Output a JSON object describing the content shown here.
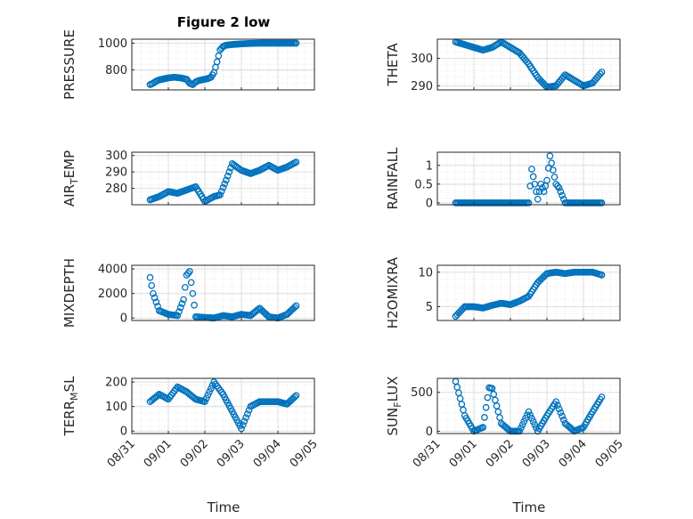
{
  "chart_data": [
    {
      "type": "scatter",
      "title": "Figure 2 low",
      "ylabel": "PRESSURE",
      "ylabel_sub": "",
      "ylim": [
        650,
        1030
      ],
      "yticks": [
        800,
        1000
      ],
      "x": [
        "08/31 12:00",
        "08/31 14:00",
        "08/31 16:00",
        "08/31 18:00",
        "08/31 20:00",
        "08/31 22:00",
        "09/01 00:00",
        "09/01 04:00",
        "09/01 08:00",
        "09/01 12:00",
        "09/01 14:00",
        "09/01 16:00",
        "09/01 18:00",
        "09/01 20:00",
        "09/01 22:00",
        "09/02 02:00",
        "09/02 04:00",
        "09/02 06:00",
        "09/02 08:00",
        "09/02 10:00",
        "09/02 12:00",
        "09/02 14:00",
        "09/02 18:00",
        "09/03 00:00",
        "09/03 06:00",
        "09/03 12:00",
        "09/03 18:00",
        "09/04 00:00",
        "09/04 06:00",
        "09/04 12:00"
      ],
      "y": [
        690,
        700,
        715,
        725,
        730,
        735,
        740,
        745,
        740,
        730,
        700,
        690,
        710,
        720,
        725,
        735,
        745,
        780,
        860,
        950,
        975,
        985,
        990,
        995,
        998,
        1000,
        1000,
        1000,
        1000,
        1000
      ]
    },
    {
      "type": "scatter",
      "ylabel": "THETA",
      "ylabel_sub": "",
      "ylim": [
        288.5,
        307
      ],
      "yticks": [
        290,
        300
      ],
      "x": [
        "08/31 12:00",
        "08/31 18:00",
        "09/01 00:00",
        "09/01 06:00",
        "09/01 12:00",
        "09/01 18:00",
        "09/02 00:00",
        "09/02 06:00",
        "09/02 12:00",
        "09/02 18:00",
        "09/03 00:00",
        "09/03 06:00",
        "09/03 12:00",
        "09/03 18:00",
        "09/04 00:00",
        "09/04 06:00",
        "09/04 12:00"
      ],
      "y": [
        306,
        305,
        304,
        303,
        304,
        306,
        304,
        302,
        298,
        293,
        289.5,
        290,
        294,
        292,
        290,
        291,
        295
      ]
    },
    {
      "type": "scatter",
      "ylabel": "AIR",
      "ylabel_sub": "T",
      "ylabel_rest": "EMP",
      "ylim": [
        270,
        302
      ],
      "yticks": [
        280,
        290,
        300
      ],
      "x": [
        "08/31 12:00",
        "08/31 18:00",
        "09/01 00:00",
        "09/01 06:00",
        "09/01 12:00",
        "09/01 18:00",
        "09/02 00:00",
        "09/02 06:00",
        "09/02 10:00",
        "09/02 14:00",
        "09/02 18:00",
        "09/03 00:00",
        "09/03 06:00",
        "09/03 12:00",
        "09/03 18:00",
        "09/04 00:00",
        "09/04 06:00",
        "09/04 12:00"
      ],
      "y": [
        273,
        275,
        278,
        277,
        279,
        281,
        272,
        275,
        276,
        285,
        295,
        291,
        289,
        291,
        294,
        291,
        293,
        296
      ]
    },
    {
      "type": "scatter",
      "ylabel": "RAINFALL",
      "ylabel_sub": "",
      "ylim": [
        -0.05,
        1.35
      ],
      "yticks": [
        0,
        0.5,
        1
      ],
      "x": [
        "08/31 12:00",
        "09/01 00:00",
        "09/01 12:00",
        "09/02 00:00",
        "09/02 12:00",
        "09/02 14:00",
        "09/02 18:00",
        "09/02 20:00",
        "09/02 22:00",
        "09/03 00:00",
        "09/03 02:00",
        "09/03 06:00",
        "09/03 08:00",
        "09/03 12:00",
        "09/04 00:00",
        "09/04 12:00"
      ],
      "y": [
        0,
        0,
        0,
        0,
        0,
        0.9,
        0.1,
        0.5,
        0.3,
        0.6,
        1.25,
        0.5,
        0.4,
        0,
        0,
        0
      ]
    },
    {
      "type": "scatter",
      "ylabel": "MIXDEPTH",
      "ylabel_sub": "",
      "ylim": [
        -200,
        4300
      ],
      "yticks": [
        0,
        2000,
        4000
      ],
      "x": [
        "08/31 12:00",
        "08/31 14:00",
        "08/31 18:00",
        "09/01 00:00",
        "09/01 06:00",
        "09/01 10:00",
        "09/01 12:00",
        "09/01 14:00",
        "09/01 16:00",
        "09/01 18:00",
        "09/02 00:00",
        "09/02 06:00",
        "09/02 12:00",
        "09/02 18:00",
        "09/03 00:00",
        "09/03 06:00",
        "09/03 12:00",
        "09/03 18:00",
        "09/04 00:00",
        "09/04 06:00",
        "09/04 12:00"
      ],
      "y": [
        3300,
        2000,
        600,
        300,
        200,
        1500,
        3500,
        3800,
        2000,
        100,
        50,
        0,
        200,
        100,
        300,
        200,
        800,
        100,
        0,
        300,
        1000
      ]
    },
    {
      "type": "scatter",
      "ylabel": "H2OMIXRA",
      "ylabel_sub": "",
      "ylim": [
        3,
        11
      ],
      "yticks": [
        5,
        10
      ],
      "x": [
        "08/31 12:00",
        "08/31 18:00",
        "09/01 00:00",
        "09/01 06:00",
        "09/01 12:00",
        "09/01 18:00",
        "09/02 00:00",
        "09/02 06:00",
        "09/02 12:00",
        "09/02 18:00",
        "09/03 00:00",
        "09/03 06:00",
        "09/03 12:00",
        "09/03 18:00",
        "09/04 00:00",
        "09/04 06:00",
        "09/04 12:00"
      ],
      "y": [
        3.6,
        5,
        5,
        4.8,
        5.2,
        5.5,
        5.3,
        5.8,
        6.5,
        8.5,
        9.8,
        10,
        9.8,
        10,
        10,
        10,
        9.6
      ]
    },
    {
      "type": "scatter",
      "ylabel": "TERR",
      "ylabel_sub": "M",
      "ylabel_rest": "SL",
      "ylim": [
        -10,
        215
      ],
      "yticks": [
        0,
        100,
        200
      ],
      "x": [
        "08/31 12:00",
        "08/31 18:00",
        "09/01 00:00",
        "09/01 06:00",
        "09/01 12:00",
        "09/01 18:00",
        "09/02 00:00",
        "09/02 06:00",
        "09/02 12:00",
        "09/02 18:00",
        "09/03 00:00",
        "09/03 06:00",
        "09/03 12:00",
        "09/03 18:00",
        "09/04 00:00",
        "09/04 06:00",
        "09/04 12:00"
      ],
      "y": [
        120,
        150,
        130,
        180,
        160,
        130,
        120,
        200,
        150,
        80,
        10,
        100,
        120,
        120,
        120,
        110,
        145
      ]
    },
    {
      "type": "scatter",
      "ylabel": "SUN",
      "ylabel_sub": "F",
      "ylabel_rest": "LUX",
      "ylim": [
        -30,
        680
      ],
      "yticks": [
        0,
        500
      ],
      "x": [
        "08/31 12:00",
        "08/31 18:00",
        "09/01 00:00",
        "09/01 06:00",
        "09/01 10:00",
        "09/01 12:00",
        "09/01 18:00",
        "09/02 00:00",
        "09/02 06:00",
        "09/02 12:00",
        "09/02 18:00",
        "09/03 00:00",
        "09/03 06:00",
        "09/03 12:00",
        "09/03 18:00",
        "09/04 00:00",
        "09/04 06:00",
        "09/04 12:00"
      ],
      "y": [
        640,
        200,
        0,
        50,
        560,
        550,
        100,
        0,
        0,
        250,
        0,
        200,
        380,
        100,
        0,
        50,
        250,
        440
      ]
    }
  ],
  "xticks": [
    "08/31",
    "09/01",
    "09/02",
    "09/03",
    "09/04",
    "09/05"
  ],
  "xlabel": "Time",
  "marker_color": "#0072bd"
}
